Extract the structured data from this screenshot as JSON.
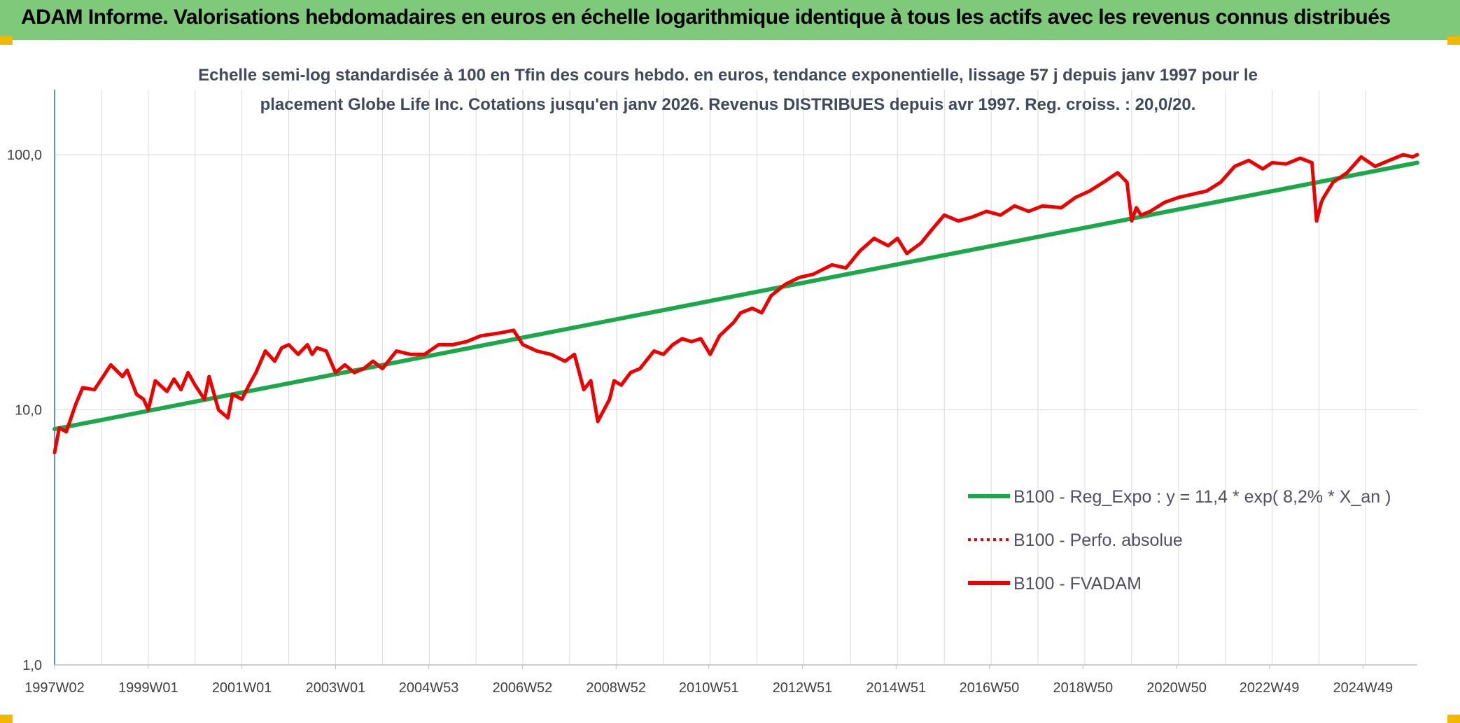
{
  "header": {
    "title": "ADAM Informe. Valorisations hebdomadaires en euros en échelle logarithmique identique à tous les actifs avec les revenus connus distribués"
  },
  "colors": {
    "header_bg": "#7ec97a",
    "regression": "#1aa84a",
    "fvadam": "#ee0000",
    "perf": "#ee0000",
    "grid": "#d9d9d9"
  },
  "chart_data": {
    "type": "line",
    "title_lines": [
      "Echelle semi-log standardisée à 100 en Tfin des cours hebdo. en euros, tendance exponentielle, lissage 57 j depuis janv 1997 pour le",
      "placement Globe Life Inc. Cotations jusqu'en janv 2026. Revenus DISTRIBUES depuis avr 1997. Reg. croiss. : 20,0/20."
    ],
    "y_scale": "log",
    "ylim": [
      1,
      180
    ],
    "y_ticks": [
      {
        "value": 1,
        "label": "1,0"
      },
      {
        "value": 10,
        "label": "10,0"
      },
      {
        "value": 100,
        "label": "100,0"
      }
    ],
    "xlim": [
      1997.0,
      2026.1
    ],
    "x_ticks": [
      {
        "value": 1997.0,
        "label": "1997W02"
      },
      {
        "value": 1999.0,
        "label": "1999W01"
      },
      {
        "value": 2001.0,
        "label": "2001W01"
      },
      {
        "value": 2003.0,
        "label": "2003W01"
      },
      {
        "value": 2004.99,
        "label": "2004W53"
      },
      {
        "value": 2006.99,
        "label": "2006W52"
      },
      {
        "value": 2008.99,
        "label": "2008W52"
      },
      {
        "value": 2010.97,
        "label": "2010W51"
      },
      {
        "value": 2012.97,
        "label": "2012W51"
      },
      {
        "value": 2014.97,
        "label": "2014W51"
      },
      {
        "value": 2016.96,
        "label": "2016W50"
      },
      {
        "value": 2018.96,
        "label": "2018W50"
      },
      {
        "value": 2020.96,
        "label": "2020W50"
      },
      {
        "value": 2022.94,
        "label": "2022W49"
      },
      {
        "value": 2024.94,
        "label": "2024W49"
      }
    ],
    "grid": true,
    "legend_position": "bottom-right",
    "series": [
      {
        "name": "B100 - Reg_Expo : y = 11,4 * exp( 8,2% *  X_an )",
        "color": "#1aa84a",
        "style": "solid",
        "x": [
          1997.0,
          2026.1
        ],
        "y": [
          8.4,
          93
        ]
      },
      {
        "name": "B100 - Perfo. absolue",
        "color": "#ee0000",
        "style": "dotted",
        "x": [],
        "y": []
      },
      {
        "name": "B100 - FVADAM",
        "color": "#ee0000",
        "style": "solid",
        "x": [
          1997.0,
          1997.1,
          1997.25,
          1997.45,
          1997.6,
          1997.85,
          1998.0,
          1998.2,
          1998.45,
          1998.55,
          1998.75,
          1998.9,
          1999.0,
          1999.15,
          1999.4,
          1999.55,
          1999.7,
          1999.85,
          2000.0,
          2000.2,
          2000.3,
          2000.5,
          2000.7,
          2000.8,
          2001.0,
          2001.15,
          2001.3,
          2001.5,
          2001.7,
          2001.85,
          2002.0,
          2002.2,
          2002.4,
          2002.5,
          2002.6,
          2002.8,
          2003.0,
          2003.2,
          2003.4,
          2003.6,
          2003.8,
          2004.0,
          2004.3,
          2004.6,
          2004.9,
          2005.2,
          2005.5,
          2005.8,
          2006.1,
          2006.5,
          2006.8,
          2007.0,
          2007.3,
          2007.6,
          2007.9,
          2008.1,
          2008.3,
          2008.45,
          2008.6,
          2008.85,
          2008.95,
          2009.1,
          2009.3,
          2009.5,
          2009.8,
          2010.0,
          2010.2,
          2010.4,
          2010.6,
          2010.8,
          2011.0,
          2011.2,
          2011.5,
          2011.65,
          2011.9,
          2012.1,
          2012.3,
          2012.6,
          2012.9,
          2013.2,
          2013.6,
          2013.9,
          2014.2,
          2014.5,
          2014.8,
          2015.0,
          2015.2,
          2015.5,
          2015.7,
          2016.0,
          2016.3,
          2016.6,
          2016.9,
          2017.2,
          2017.5,
          2017.8,
          2018.1,
          2018.5,
          2018.8,
          2019.1,
          2019.4,
          2019.7,
          2019.9,
          2020.0,
          2020.1,
          2020.2,
          2020.4,
          2020.7,
          2021.0,
          2021.3,
          2021.6,
          2021.9,
          2022.2,
          2022.5,
          2022.8,
          2023.0,
          2023.3,
          2023.6,
          2023.85,
          2023.95,
          2024.05,
          2024.1,
          2024.3,
          2024.6,
          2024.9,
          2025.2,
          2025.5,
          2025.8,
          2026.0,
          2026.1
        ],
        "y": [
          6.8,
          8.5,
          8.2,
          10.5,
          12.2,
          12.0,
          13.2,
          15.0,
          13.5,
          14.3,
          11.5,
          11.0,
          10.0,
          13.0,
          11.8,
          13.2,
          12.0,
          14.0,
          12.5,
          11.0,
          13.5,
          10.0,
          9.3,
          11.5,
          11.0,
          12.5,
          14.0,
          17.0,
          15.5,
          17.5,
          18.0,
          16.5,
          18.0,
          16.5,
          17.5,
          17.0,
          14.0,
          15.0,
          14.0,
          14.5,
          15.5,
          14.5,
          17.0,
          16.5,
          16.5,
          18.0,
          18.0,
          18.5,
          19.5,
          20.0,
          20.5,
          18.0,
          17.0,
          16.5,
          15.5,
          16.5,
          12.0,
          13.0,
          9.0,
          11.0,
          13.0,
          12.5,
          14.0,
          14.5,
          17.0,
          16.5,
          18.0,
          19.0,
          18.5,
          19.0,
          16.5,
          19.5,
          22.0,
          24.0,
          25.0,
          24.0,
          28.0,
          31.0,
          33.0,
          34.0,
          37.0,
          36.0,
          42.0,
          47.0,
          44.0,
          47.0,
          41.0,
          45.0,
          50.0,
          58.0,
          55.0,
          57.0,
          60.0,
          58.0,
          63.0,
          60.0,
          63.0,
          62.0,
          68.0,
          72.0,
          78.0,
          85.0,
          78.0,
          55.0,
          62.0,
          58.0,
          60.0,
          65.0,
          68.0,
          70.0,
          72.0,
          78.0,
          90.0,
          95.0,
          88.0,
          93.0,
          92.0,
          97.0,
          93.0,
          55.0,
          65.0,
          68.0,
          78.0,
          85.0,
          98.0,
          90.0,
          95.0,
          100.0,
          98.0,
          100.0
        ]
      }
    ]
  }
}
